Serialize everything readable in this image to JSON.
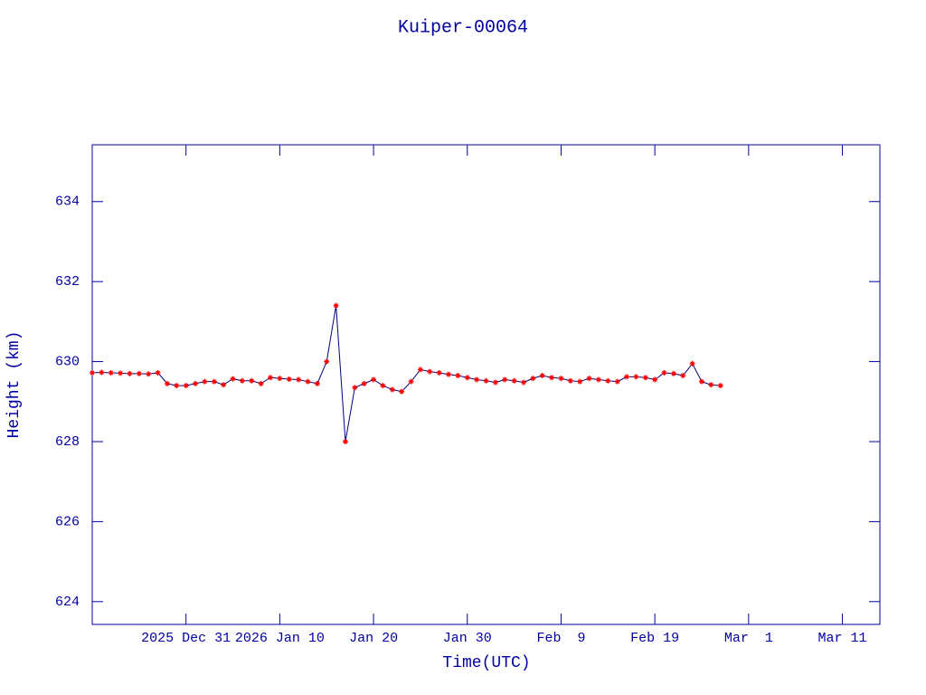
{
  "chart_data": {
    "type": "line",
    "title": "Kuiper-00064",
    "xlabel": "Time(UTC)",
    "ylabel": "Height (km)",
    "x": [
      "2025-12-21",
      "2025-12-22",
      "2025-12-23",
      "2025-12-24",
      "2025-12-25",
      "2025-12-26",
      "2025-12-27",
      "2025-12-28",
      "2025-12-29",
      "2025-12-30",
      "2025-12-31",
      "2026-01-01",
      "2026-01-02",
      "2026-01-03",
      "2026-01-04",
      "2026-01-05",
      "2026-01-06",
      "2026-01-07",
      "2026-01-08",
      "2026-01-09",
      "2026-01-10",
      "2026-01-11",
      "2026-01-12",
      "2026-01-13",
      "2026-01-14",
      "2026-01-15",
      "2026-01-16",
      "2026-01-17",
      "2026-01-18",
      "2026-01-19",
      "2026-01-20",
      "2026-01-21",
      "2026-01-22",
      "2026-01-23",
      "2026-01-24",
      "2026-01-25",
      "2026-01-26",
      "2026-01-27",
      "2026-01-28",
      "2026-01-29",
      "2026-01-30",
      "2026-01-31",
      "2026-02-01",
      "2026-02-02",
      "2026-02-03",
      "2026-02-04",
      "2026-02-05",
      "2026-02-06",
      "2026-02-07",
      "2026-02-08",
      "2026-02-09",
      "2026-02-10",
      "2026-02-11",
      "2026-02-12",
      "2026-02-13",
      "2026-02-14",
      "2026-02-15",
      "2026-02-16",
      "2026-02-17",
      "2026-02-18",
      "2026-02-19",
      "2026-02-20",
      "2026-02-21",
      "2026-02-22",
      "2026-02-23",
      "2026-02-24",
      "2026-02-25",
      "2026-02-26"
    ],
    "series": [
      {
        "name": "Height",
        "color": "#000080",
        "marker_color": "#ff0000",
        "values": [
          629.72,
          629.73,
          629.72,
          629.71,
          629.7,
          629.7,
          629.69,
          629.72,
          629.45,
          629.4,
          629.4,
          629.45,
          629.5,
          629.5,
          629.42,
          629.57,
          629.52,
          629.52,
          629.45,
          629.6,
          629.58,
          629.56,
          629.55,
          629.5,
          629.45,
          630.0,
          631.4,
          628.0,
          629.35,
          629.45,
          629.55,
          629.4,
          629.3,
          629.25,
          629.5,
          629.8,
          629.75,
          629.72,
          629.68,
          629.65,
          629.6,
          629.55,
          629.52,
          629.48,
          629.55,
          629.52,
          629.48,
          629.58,
          629.65,
          629.6,
          629.58,
          629.52,
          629.5,
          629.58,
          629.55,
          629.52,
          629.5,
          629.62,
          629.62,
          629.6,
          629.55,
          629.72,
          629.7,
          629.65,
          629.95,
          629.5,
          629.42,
          629.4
        ]
      }
    ],
    "xlim": [
      "2025-12-21",
      "2026-03-15"
    ],
    "xticks": [
      {
        "value": "2025-12-31",
        "label": "2025 Dec 31"
      },
      {
        "value": "2026-01-10",
        "label": "2026 Jan 10"
      },
      {
        "value": "2026-01-20",
        "label": "Jan 20"
      },
      {
        "value": "2026-01-30",
        "label": "Jan 30"
      },
      {
        "value": "2026-02-09",
        "label": "Feb  9"
      },
      {
        "value": "2026-02-19",
        "label": "Feb 19"
      },
      {
        "value": "2026-03-01",
        "label": "Mar  1"
      },
      {
        "value": "2026-03-11",
        "label": "Mar 11"
      }
    ],
    "ylim": [
      623.43,
      635.42
    ],
    "yticks": [
      624,
      626,
      628,
      630,
      632,
      634
    ]
  }
}
